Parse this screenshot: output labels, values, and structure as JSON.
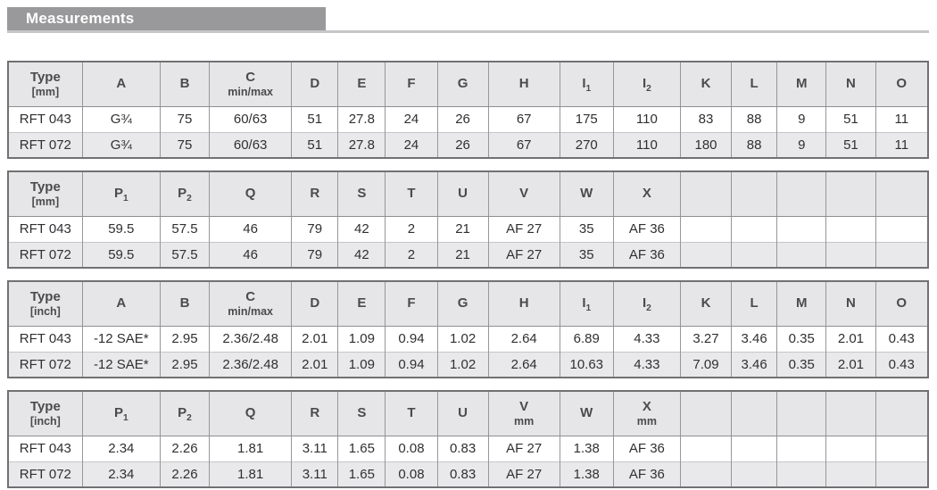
{
  "section": {
    "title": "Measurements"
  },
  "colors": {
    "header_bar": "#99999b",
    "rule_line": "#c6c6c8",
    "table_header_bg": "#e6e6e8",
    "row_alt_bg": "#e9e9eb"
  },
  "tables": [
    {
      "name": "dimensions-mm-main",
      "header": {
        "type": "Type",
        "unit": "[mm]"
      },
      "columns": [
        {
          "label": "A",
          "sub": ""
        },
        {
          "label": "B",
          "sub": ""
        },
        {
          "label": "C",
          "sub": "min/max"
        },
        {
          "label": "D",
          "sub": ""
        },
        {
          "label": "E",
          "sub": ""
        },
        {
          "label": "F",
          "sub": ""
        },
        {
          "label": "G",
          "sub": ""
        },
        {
          "label": "H",
          "sub": ""
        },
        {
          "label": "I₁",
          "sub": ""
        },
        {
          "label": "I₂",
          "sub": ""
        },
        {
          "label": "K",
          "sub": ""
        },
        {
          "label": "L",
          "sub": ""
        },
        {
          "label": "M",
          "sub": ""
        },
        {
          "label": "N",
          "sub": ""
        },
        {
          "label": "O",
          "sub": ""
        }
      ],
      "rows": [
        {
          "type": "RFT 043",
          "values": [
            "G¾",
            "75",
            "60/63",
            "51",
            "27.8",
            "24",
            "26",
            "67",
            "175",
            "110",
            "83",
            "88",
            "9",
            "51",
            "11"
          ]
        },
        {
          "type": "RFT 072",
          "values": [
            "G¾",
            "75",
            "60/63",
            "51",
            "27.8",
            "24",
            "26",
            "67",
            "270",
            "110",
            "180",
            "88",
            "9",
            "51",
            "11"
          ]
        }
      ]
    },
    {
      "name": "dimensions-mm-secondary",
      "header": {
        "type": "Type",
        "unit": "[mm]"
      },
      "columns": [
        {
          "label": "P₁",
          "sub": ""
        },
        {
          "label": "P₂",
          "sub": ""
        },
        {
          "label": "Q",
          "sub": ""
        },
        {
          "label": "R",
          "sub": ""
        },
        {
          "label": "S",
          "sub": ""
        },
        {
          "label": "T",
          "sub": ""
        },
        {
          "label": "U",
          "sub": ""
        },
        {
          "label": "V",
          "sub": ""
        },
        {
          "label": "W",
          "sub": ""
        },
        {
          "label": "X",
          "sub": ""
        },
        {
          "label": "",
          "sub": ""
        },
        {
          "label": "",
          "sub": ""
        },
        {
          "label": "",
          "sub": ""
        },
        {
          "label": "",
          "sub": ""
        },
        {
          "label": "",
          "sub": ""
        }
      ],
      "rows": [
        {
          "type": "RFT 043",
          "values": [
            "59.5",
            "57.5",
            "46",
            "79",
            "42",
            "2",
            "21",
            "AF 27",
            "35",
            "AF 36",
            "",
            "",
            "",
            "",
            ""
          ]
        },
        {
          "type": "RFT 072",
          "values": [
            "59.5",
            "57.5",
            "46",
            "79",
            "42",
            "2",
            "21",
            "AF 27",
            "35",
            "AF 36",
            "",
            "",
            "",
            "",
            ""
          ]
        }
      ]
    },
    {
      "name": "dimensions-inch-main",
      "header": {
        "type": "Type",
        "unit": "[inch]"
      },
      "columns": [
        {
          "label": "A",
          "sub": ""
        },
        {
          "label": "B",
          "sub": ""
        },
        {
          "label": "C",
          "sub": "min/max"
        },
        {
          "label": "D",
          "sub": ""
        },
        {
          "label": "E",
          "sub": ""
        },
        {
          "label": "F",
          "sub": ""
        },
        {
          "label": "G",
          "sub": ""
        },
        {
          "label": "H",
          "sub": ""
        },
        {
          "label": "I₁",
          "sub": ""
        },
        {
          "label": "I₂",
          "sub": ""
        },
        {
          "label": "K",
          "sub": ""
        },
        {
          "label": "L",
          "sub": ""
        },
        {
          "label": "M",
          "sub": ""
        },
        {
          "label": "N",
          "sub": ""
        },
        {
          "label": "O",
          "sub": ""
        }
      ],
      "rows": [
        {
          "type": "RFT 043",
          "values": [
            "-12 SAE*",
            "2.95",
            "2.36/2.48",
            "2.01",
            "1.09",
            "0.94",
            "1.02",
            "2.64",
            "6.89",
            "4.33",
            "3.27",
            "3.46",
            "0.35",
            "2.01",
            "0.43"
          ]
        },
        {
          "type": "RFT 072",
          "values": [
            "-12 SAE*",
            "2.95",
            "2.36/2.48",
            "2.01",
            "1.09",
            "0.94",
            "1.02",
            "2.64",
            "10.63",
            "4.33",
            "7.09",
            "3.46",
            "0.35",
            "2.01",
            "0.43"
          ]
        }
      ]
    },
    {
      "name": "dimensions-inch-secondary",
      "header": {
        "type": "Type",
        "unit": "[inch]"
      },
      "columns": [
        {
          "label": "P₁",
          "sub": ""
        },
        {
          "label": "P₂",
          "sub": ""
        },
        {
          "label": "Q",
          "sub": ""
        },
        {
          "label": "R",
          "sub": ""
        },
        {
          "label": "S",
          "sub": ""
        },
        {
          "label": "T",
          "sub": ""
        },
        {
          "label": "U",
          "sub": ""
        },
        {
          "label": "V",
          "sub": "mm"
        },
        {
          "label": "W",
          "sub": ""
        },
        {
          "label": "X",
          "sub": "mm"
        },
        {
          "label": "",
          "sub": ""
        },
        {
          "label": "",
          "sub": ""
        },
        {
          "label": "",
          "sub": ""
        },
        {
          "label": "",
          "sub": ""
        },
        {
          "label": "",
          "sub": ""
        }
      ],
      "rows": [
        {
          "type": "RFT 043",
          "values": [
            "2.34",
            "2.26",
            "1.81",
            "3.11",
            "1.65",
            "0.08",
            "0.83",
            "AF 27",
            "1.38",
            "AF 36",
            "",
            "",
            "",
            "",
            ""
          ]
        },
        {
          "type": "RFT 072",
          "values": [
            "2.34",
            "2.26",
            "1.81",
            "3.11",
            "1.65",
            "0.08",
            "0.83",
            "AF 27",
            "1.38",
            "AF 36",
            "",
            "",
            "",
            "",
            ""
          ]
        }
      ]
    }
  ]
}
